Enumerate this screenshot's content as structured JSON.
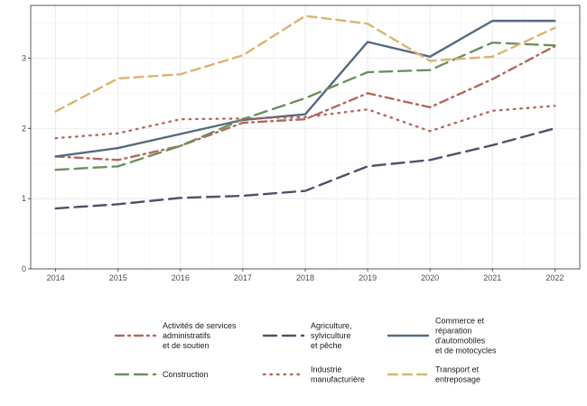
{
  "chart_data": {
    "type": "line",
    "x": [
      2014,
      2015,
      2016,
      2017,
      2018,
      2019,
      2020,
      2021,
      2022
    ],
    "xlim": [
      2013.6,
      2022.4
    ],
    "ylim": [
      0,
      3.75
    ],
    "y_ticks": [
      0,
      1,
      2,
      3
    ],
    "grid": true,
    "legend_position": "bottom",
    "series": [
      {
        "name": "Activités de services administratifs et de soutien",
        "legend_lines": [
          "Activités de services",
          "administratifs",
          "et de soutien"
        ],
        "color": "#b5675f",
        "dash": "dash-dot",
        "values": [
          1.6,
          1.55,
          1.75,
          2.08,
          2.13,
          2.5,
          2.3,
          2.7,
          3.17
        ]
      },
      {
        "name": "Agriculture, sylviculture et pêche",
        "legend_lines": [
          "Agriculture,",
          "sylviculture",
          "et pêche"
        ],
        "color": "#5b4a6b",
        "dash": "long-dash",
        "values": [
          0.86,
          0.92,
          1.01,
          1.04,
          1.11,
          1.46,
          1.55,
          1.76,
          2.0
        ]
      },
      {
        "name": "Commerce et réparation d'automobiles et de motocycles",
        "legend_lines": [
          "Commerce et",
          "réparation",
          "d'automobiles",
          "et de motocycles"
        ],
        "color": "#546a80",
        "dash": "solid",
        "values": [
          1.6,
          1.72,
          1.92,
          2.12,
          2.2,
          3.23,
          3.02,
          3.53,
          3.53
        ]
      },
      {
        "name": "Construction",
        "legend_lines": [
          "Construction"
        ],
        "color": "#6e8f5e",
        "dash": "long-dash",
        "values": [
          1.41,
          1.46,
          1.75,
          2.13,
          2.43,
          2.8,
          2.83,
          3.22,
          3.18
        ]
      },
      {
        "name": "Industrie manufacturière",
        "legend_lines": [
          "Industrie",
          "manufacturière"
        ],
        "color": "#b5675f",
        "dash": "dotted",
        "values": [
          1.86,
          1.93,
          2.13,
          2.14,
          2.16,
          2.27,
          1.96,
          2.25,
          2.32
        ]
      },
      {
        "name": "Transport et entreposage",
        "legend_lines": [
          "Transport et",
          "entreposage"
        ],
        "color": "#dcb36e",
        "dash": "dashed",
        "values": [
          2.24,
          2.71,
          2.77,
          3.04,
          3.6,
          3.49,
          2.96,
          3.02,
          3.43
        ]
      }
    ]
  }
}
